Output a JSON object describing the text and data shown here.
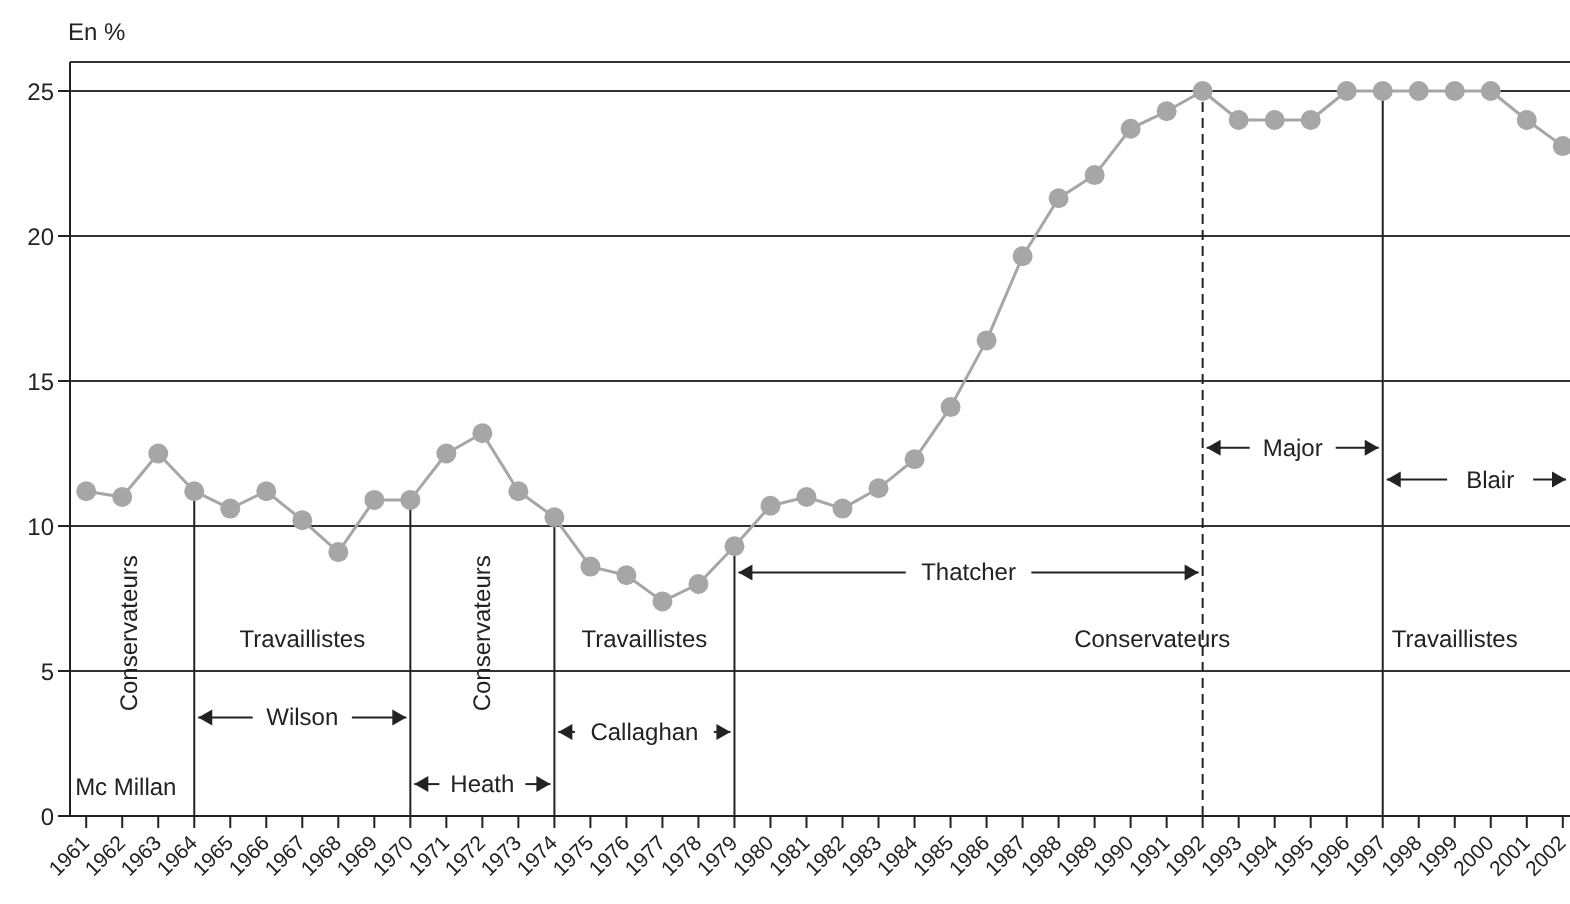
{
  "chart_data": {
    "type": "line",
    "ylabel": "En %",
    "categories": [
      "1961",
      "1962",
      "1963",
      "1964",
      "1965",
      "1966",
      "1967",
      "1968",
      "1969",
      "1970",
      "1971",
      "1972",
      "1973",
      "1974",
      "1975",
      "1976",
      "1977",
      "1978",
      "1979",
      "1980",
      "1981",
      "1982",
      "1983",
      "1984",
      "1985",
      "1986",
      "1987",
      "1988",
      "1989",
      "1990",
      "1991",
      "1992",
      "1993",
      "1994",
      "1995",
      "1996",
      "1997",
      "1998",
      "1999",
      "2000",
      "2001",
      "2002"
    ],
    "series": [
      {
        "color": "#a6a6a6",
        "values": [
          11.2,
          11.0,
          12.5,
          11.2,
          10.6,
          11.2,
          10.2,
          9.1,
          10.9,
          10.9,
          12.5,
          13.2,
          11.2,
          10.3,
          8.6,
          8.3,
          7.4,
          8.0,
          9.3,
          10.7,
          11.0,
          10.6,
          11.3,
          12.3,
          14.1,
          16.4,
          19.3,
          21.3,
          22.1,
          23.7,
          24.3,
          25,
          24.0,
          24.0,
          24.0,
          25,
          25,
          25,
          25,
          25,
          24.0,
          23.1
        ]
      }
    ],
    "marker": "circle",
    "line_style": "solid",
    "grid": "y",
    "legend": false,
    "ylim": [
      0,
      26
    ],
    "yticks": [
      0,
      5,
      10,
      15,
      20,
      25
    ],
    "ref_lines": [
      {
        "axis": "x",
        "value": "1964",
        "color": "#222222",
        "line_style": "solid"
      },
      {
        "axis": "x",
        "value": "1970",
        "color": "#222222",
        "line_style": "solid"
      },
      {
        "axis": "x",
        "value": "1974",
        "color": "#222222",
        "line_style": "solid"
      },
      {
        "axis": "x",
        "value": "1979",
        "color": "#222222",
        "line_style": "solid"
      },
      {
        "axis": "x",
        "value": "1992",
        "color": "#222222",
        "line_style": "dashed"
      },
      {
        "axis": "x",
        "value": "1997",
        "color": "#222222",
        "line_style": "solid"
      }
    ],
    "annotations": [
      "Conservateurs",
      "Mc Millan",
      "Travaillistes",
      "Conservateurs",
      "Travaillistes",
      "Conservateurs",
      "Travaillistes",
      {
        "text": "Wilson",
        "x": "1964",
        "y": 3.4
      },
      {
        "text": "Heath",
        "x": "1970",
        "y": 1.1
      },
      {
        "text": "Callaghan",
        "x": "1974",
        "y": 2.9
      },
      {
        "text": "Thatcher",
        "x": "1979",
        "y": 8.4
      },
      {
        "text": "Major",
        "x": "1992",
        "y": 12.7
      },
      {
        "text": "Blair",
        "x": "1997",
        "y": 11.6
      }
    ]
  }
}
